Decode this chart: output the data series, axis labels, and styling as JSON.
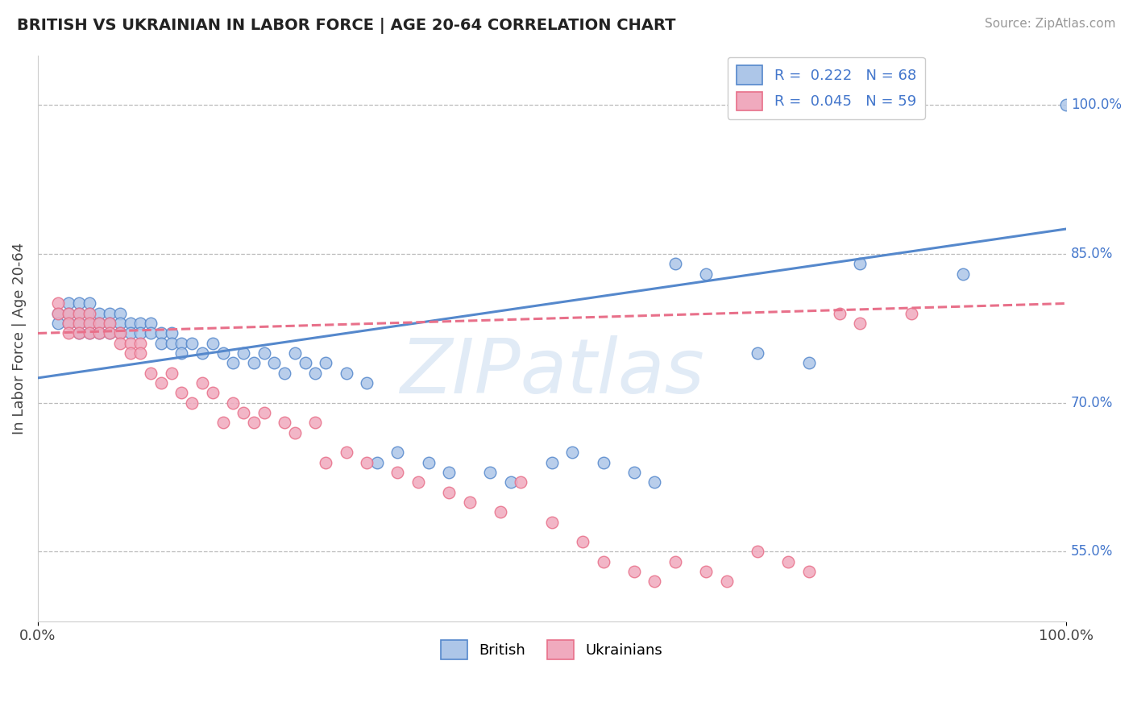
{
  "title": "BRITISH VS UKRAINIAN IN LABOR FORCE | AGE 20-64 CORRELATION CHART",
  "source_text": "Source: ZipAtlas.com",
  "ylabel": "In Labor Force | Age 20-64",
  "xlim": [
    0.0,
    1.0
  ],
  "ylim": [
    0.48,
    1.05
  ],
  "british_R": 0.222,
  "british_N": 68,
  "ukrainian_R": 0.045,
  "ukrainian_N": 59,
  "british_color": "#adc6e8",
  "ukrainian_color": "#f0aabe",
  "british_line_color": "#5588cc",
  "ukrainian_line_color": "#e8708a",
  "ytick_labels": [
    "55.0%",
    "70.0%",
    "85.0%",
    "100.0%"
  ],
  "ytick_values": [
    0.55,
    0.7,
    0.85,
    1.0
  ],
  "watermark_text": "ZIPatlas",
  "british_x": [
    0.02,
    0.02,
    0.03,
    0.03,
    0.03,
    0.04,
    0.04,
    0.04,
    0.04,
    0.05,
    0.05,
    0.05,
    0.05,
    0.06,
    0.06,
    0.06,
    0.07,
    0.07,
    0.07,
    0.08,
    0.08,
    0.08,
    0.09,
    0.09,
    0.1,
    0.1,
    0.11,
    0.11,
    0.12,
    0.12,
    0.13,
    0.13,
    0.14,
    0.14,
    0.15,
    0.16,
    0.17,
    0.18,
    0.19,
    0.2,
    0.21,
    0.22,
    0.23,
    0.24,
    0.25,
    0.26,
    0.27,
    0.28,
    0.3,
    0.32,
    0.33,
    0.35,
    0.38,
    0.4,
    0.44,
    0.46,
    0.5,
    0.52,
    0.55,
    0.58,
    0.6,
    0.62,
    0.65,
    0.7,
    0.75,
    0.8,
    0.9,
    1.0
  ],
  "british_y": [
    0.79,
    0.78,
    0.8,
    0.79,
    0.78,
    0.8,
    0.79,
    0.78,
    0.77,
    0.8,
    0.79,
    0.78,
    0.77,
    0.79,
    0.78,
    0.77,
    0.79,
    0.78,
    0.77,
    0.79,
    0.78,
    0.77,
    0.78,
    0.77,
    0.78,
    0.77,
    0.78,
    0.77,
    0.77,
    0.76,
    0.77,
    0.76,
    0.76,
    0.75,
    0.76,
    0.75,
    0.76,
    0.75,
    0.74,
    0.75,
    0.74,
    0.75,
    0.74,
    0.73,
    0.75,
    0.74,
    0.73,
    0.74,
    0.73,
    0.72,
    0.64,
    0.65,
    0.64,
    0.63,
    0.63,
    0.62,
    0.64,
    0.65,
    0.64,
    0.63,
    0.62,
    0.84,
    0.83,
    0.75,
    0.74,
    0.84,
    0.83,
    1.0
  ],
  "ukrainian_x": [
    0.02,
    0.02,
    0.03,
    0.03,
    0.03,
    0.04,
    0.04,
    0.04,
    0.05,
    0.05,
    0.05,
    0.06,
    0.06,
    0.07,
    0.07,
    0.08,
    0.08,
    0.09,
    0.09,
    0.1,
    0.1,
    0.11,
    0.12,
    0.13,
    0.14,
    0.15,
    0.16,
    0.17,
    0.18,
    0.19,
    0.2,
    0.21,
    0.22,
    0.24,
    0.25,
    0.27,
    0.28,
    0.3,
    0.32,
    0.35,
    0.37,
    0.4,
    0.42,
    0.45,
    0.47,
    0.5,
    0.53,
    0.55,
    0.58,
    0.6,
    0.62,
    0.65,
    0.67,
    0.7,
    0.73,
    0.75,
    0.78,
    0.8,
    0.85
  ],
  "ukrainian_y": [
    0.8,
    0.79,
    0.79,
    0.78,
    0.77,
    0.79,
    0.78,
    0.77,
    0.79,
    0.78,
    0.77,
    0.78,
    0.77,
    0.78,
    0.77,
    0.77,
    0.76,
    0.76,
    0.75,
    0.76,
    0.75,
    0.73,
    0.72,
    0.73,
    0.71,
    0.7,
    0.72,
    0.71,
    0.68,
    0.7,
    0.69,
    0.68,
    0.69,
    0.68,
    0.67,
    0.68,
    0.64,
    0.65,
    0.64,
    0.63,
    0.62,
    0.61,
    0.6,
    0.59,
    0.62,
    0.58,
    0.56,
    0.54,
    0.53,
    0.52,
    0.54,
    0.53,
    0.52,
    0.55,
    0.54,
    0.53,
    0.79,
    0.78,
    0.79
  ],
  "british_line_start_y": 0.725,
  "british_line_end_y": 0.875,
  "ukrainian_line_start_y": 0.77,
  "ukrainian_line_end_y": 0.8
}
